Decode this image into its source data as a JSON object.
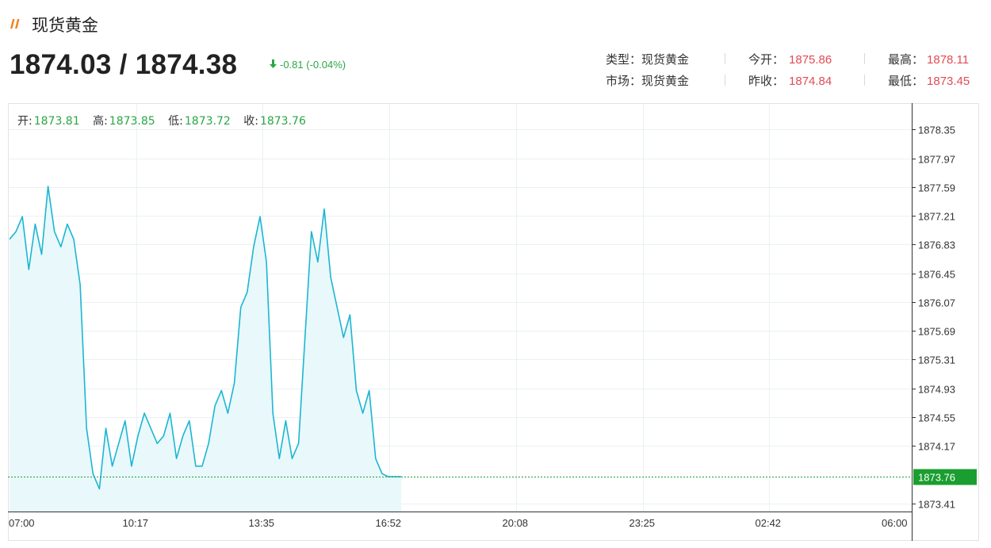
{
  "header": {
    "title": "现货黄金",
    "price": "1874.03 / 1874.38",
    "change": "-0.81 (-0.04%)"
  },
  "info": {
    "type_label": "类型：",
    "type_value": "现货黄金",
    "market_label": "市场：",
    "market_value": "现货黄金",
    "open_label": "今开：",
    "open_value": "1875.86",
    "prev_close_label": "昨收：",
    "prev_close_value": "1874.84",
    "high_label": "最高：",
    "high_value": "1878.11",
    "low_label": "最低：",
    "low_value": "1873.45"
  },
  "ohlc": {
    "open_label": "开:",
    "open": "1873.81",
    "high_label": "高:",
    "high": "1873.85",
    "low_label": "低:",
    "low": "1873.72",
    "close_label": "收:",
    "close": "1873.76"
  },
  "colors": {
    "line": "#1bb6d2",
    "area": "#e9f8fb",
    "up_red": "#e04c55",
    "down_green": "#2aa745",
    "last_badge": "#1a9e2f"
  },
  "chart_data": {
    "type": "area",
    "x_ticks": [
      "07:00",
      "10:17",
      "13:35",
      "16:52",
      "20:08",
      "23:25",
      "02:42",
      "06:00"
    ],
    "y_ticks": [
      1873.41,
      1874.17,
      1874.55,
      1874.93,
      1875.31,
      1875.69,
      1876.07,
      1876.45,
      1876.83,
      1877.21,
      1877.59,
      1877.97,
      1878.35
    ],
    "ylim": [
      1873.3,
      1878.7
    ],
    "last_value": "1873.76",
    "points_time": [
      "07:00",
      "07:10",
      "07:20",
      "07:30",
      "07:40",
      "07:50",
      "08:00",
      "08:10",
      "08:20",
      "08:30",
      "08:40",
      "08:50",
      "09:00",
      "09:10",
      "09:20",
      "09:30",
      "09:40",
      "09:50",
      "10:00",
      "10:10",
      "10:20",
      "10:30",
      "10:40",
      "10:50",
      "11:00",
      "11:10",
      "11:20",
      "11:30",
      "11:40",
      "11:50",
      "12:00",
      "12:10",
      "12:20",
      "12:30",
      "12:40",
      "12:50",
      "13:00",
      "13:10",
      "13:20",
      "13:30",
      "13:40",
      "13:50",
      "14:00",
      "14:10",
      "14:20",
      "14:30",
      "14:40",
      "14:50",
      "15:00",
      "15:10",
      "15:20",
      "15:30",
      "15:40",
      "15:50",
      "16:00",
      "16:10",
      "16:20",
      "16:30",
      "16:40",
      "16:50",
      "17:00",
      "17:10"
    ],
    "points_value": [
      1876.9,
      1877.0,
      1877.2,
      1876.5,
      1877.1,
      1876.7,
      1877.6,
      1877.0,
      1876.8,
      1877.1,
      1876.9,
      1876.3,
      1874.4,
      1873.8,
      1873.6,
      1874.4,
      1873.9,
      1874.2,
      1874.5,
      1873.9,
      1874.3,
      1874.6,
      1874.4,
      1874.2,
      1874.3,
      1874.6,
      1874.0,
      1874.3,
      1874.5,
      1873.9,
      1873.9,
      1874.2,
      1874.7,
      1874.9,
      1874.6,
      1875.0,
      1876.0,
      1876.2,
      1876.8,
      1877.2,
      1876.6,
      1874.6,
      1874.0,
      1874.5,
      1874.0,
      1874.2,
      1875.6,
      1877.0,
      1876.6,
      1877.3,
      1876.4,
      1876.0,
      1875.6,
      1875.9,
      1874.9,
      1874.6,
      1874.9,
      1874.0,
      1873.8,
      1873.76,
      1873.76,
      1873.76
    ]
  }
}
